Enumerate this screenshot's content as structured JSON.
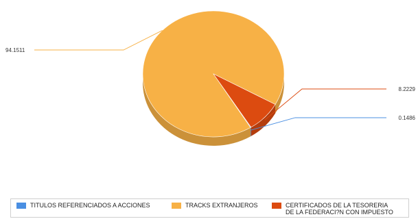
{
  "chart_data": {
    "type": "pie",
    "slices": [
      {
        "label": "TITULOS REFERENCIADOS A ACCIONES",
        "value": 0.1486,
        "value_label": "0.1486",
        "color": "#4a8fe2"
      },
      {
        "label": "TRACKS EXTRANJEROS",
        "value": 94.1511,
        "value_label": "94.1511",
        "color": "#f7b146"
      },
      {
        "label": "CERTIFICADOS DE LA TESORERIA\nDE LA FEDERACI?N CON IMPUESTO",
        "value": 8.2229,
        "value_label": "8.2229",
        "color": "#dc4b10"
      }
    ],
    "legend_position": "bottom",
    "style": "3d"
  }
}
